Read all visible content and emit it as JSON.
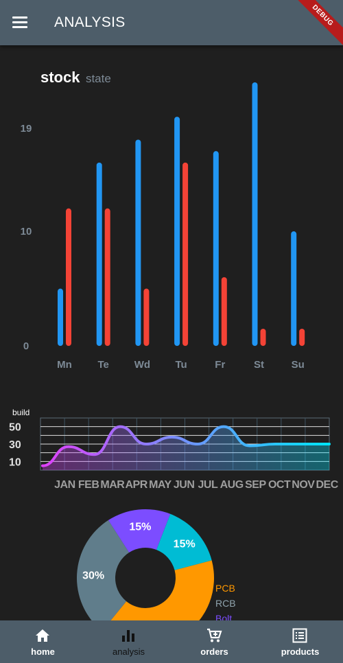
{
  "appbar": {
    "title": "ANALYSIS",
    "menu_icon": "menu-icon",
    "debug_label": "DEBUG"
  },
  "stock_chart": {
    "title": "stock",
    "subtitle": "state",
    "chart_data": {
      "type": "bar",
      "categories": [
        "Mn",
        "Te",
        "Wd",
        "Tu",
        "Fr",
        "St",
        "Su"
      ],
      "series": [
        {
          "values": [
            5,
            16,
            18,
            20,
            17,
            23,
            10
          ],
          "color": "#2196f3"
        },
        {
          "values": [
            12,
            12,
            5,
            16,
            6,
            1.5,
            1.5
          ],
          "color": "#f44336"
        }
      ],
      "yticks": [
        "0",
        "10",
        "19"
      ],
      "ylim": [
        0,
        23
      ]
    }
  },
  "build_chart": {
    "title": "build",
    "chart_data": {
      "type": "area",
      "x": [
        "JAN",
        "FEB",
        "MAR",
        "APR",
        "MAY",
        "JUN",
        "JUL",
        "AUG",
        "SEP",
        "OCT",
        "NOV",
        "DEC"
      ],
      "y": [
        5,
        27,
        18,
        50,
        30,
        38,
        30,
        50,
        28,
        30,
        30,
        30
      ],
      "yticks": [
        "10",
        "30",
        "50"
      ],
      "gradient": [
        "#e040fb",
        "#00e5ff"
      ]
    }
  },
  "pie_chart": {
    "chart_data": {
      "type": "pie",
      "slices": [
        {
          "label": "15%",
          "value": 15,
          "color": "#00bcd4"
        },
        {
          "label": "",
          "value": 40,
          "color": "#ff9800"
        },
        {
          "label": "30%",
          "value": 30,
          "color": "#607d8b"
        },
        {
          "label": "15%",
          "value": 15,
          "color": "#7c4dff"
        }
      ],
      "legend": [
        {
          "label": "PCB",
          "color": "#ff9800"
        },
        {
          "label": "RCB",
          "color": "#90a4ae"
        },
        {
          "label": "Bolt",
          "color": "#7c4dff"
        }
      ]
    }
  },
  "bottom_nav": {
    "items": [
      {
        "label": "home",
        "icon": "home-icon"
      },
      {
        "label": "analysis",
        "icon": "bar-chart-icon"
      },
      {
        "label": "orders",
        "icon": "cart-icon"
      },
      {
        "label": "products",
        "icon": "list-icon"
      }
    ]
  }
}
